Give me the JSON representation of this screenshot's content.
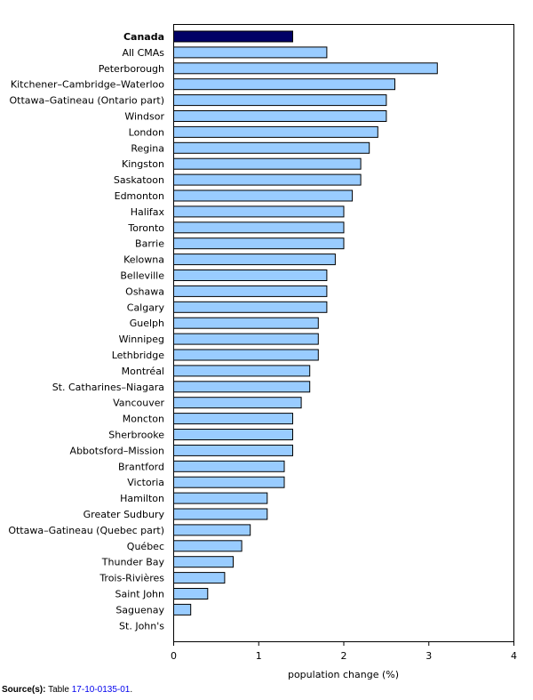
{
  "chart_data": {
    "type": "bar",
    "orientation": "horizontal",
    "title": "",
    "xlabel": "population change (%)",
    "ylabel": "",
    "xlim": [
      0,
      4
    ],
    "xticks": [
      0,
      1,
      2,
      3,
      4
    ],
    "grid": false,
    "highlight_category": "Canada",
    "colors": {
      "highlight": "#000066",
      "bar": "#99ccff",
      "edge": "#000000",
      "axis": "#000000"
    },
    "categories": [
      "Canada",
      "All CMAs",
      "Peterborough",
      "Kitchener–Cambridge–Waterloo",
      "Ottawa–Gatineau (Ontario part)",
      "Windsor",
      "London",
      "Regina",
      "Kingston",
      "Saskatoon",
      "Edmonton",
      "Halifax",
      "Toronto",
      "Barrie",
      "Kelowna",
      "Belleville",
      "Oshawa",
      "Calgary",
      "Guelph",
      "Winnipeg",
      "Lethbridge",
      "Montréal",
      "St. Catharines–Niagara",
      "Vancouver",
      "Moncton",
      "Sherbrooke",
      "Abbotsford–Mission",
      "Brantford",
      "Victoria",
      "Hamilton",
      "Greater Sudbury",
      "Ottawa–Gatineau (Quebec part)",
      "Québec",
      "Thunder Bay",
      "Trois-Rivières",
      "Saint John",
      "Saguenay",
      "St. John's"
    ],
    "values": [
      1.4,
      1.8,
      3.1,
      2.6,
      2.5,
      2.5,
      2.4,
      2.3,
      2.2,
      2.2,
      2.1,
      2.0,
      2.0,
      2.0,
      1.9,
      1.8,
      1.8,
      1.8,
      1.7,
      1.7,
      1.7,
      1.6,
      1.6,
      1.5,
      1.4,
      1.4,
      1.4,
      1.3,
      1.3,
      1.1,
      1.1,
      0.9,
      0.8,
      0.7,
      0.6,
      0.4,
      0.2,
      0.0
    ]
  },
  "source": {
    "label": "Source(s):",
    "text": "Table",
    "link": "17-10-0135-01",
    "end": "."
  }
}
